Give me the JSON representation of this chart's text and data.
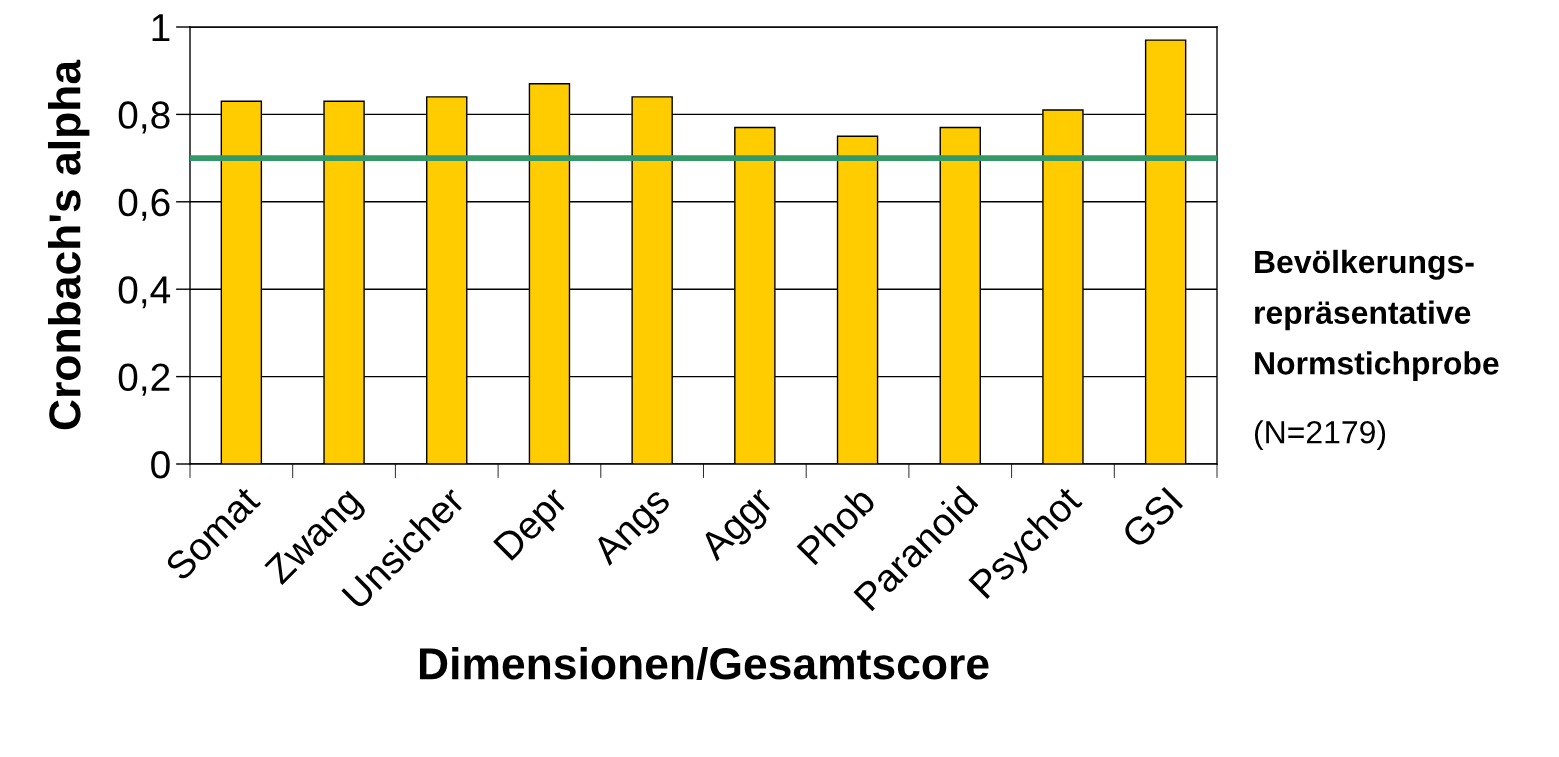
{
  "chart_data": {
    "type": "bar",
    "xlabel": "Dimensionen/Gesamtscore",
    "ylabel": "Cronbach's alpha",
    "categories": [
      "Somat",
      "Zwang",
      "Unsicher",
      "Depr",
      "Angs",
      "Aggr",
      "Phob",
      "Paranoid",
      "Psychot",
      "GSI"
    ],
    "values": [
      0.83,
      0.83,
      0.84,
      0.87,
      0.84,
      0.77,
      0.75,
      0.77,
      0.81,
      0.97
    ],
    "color": "#ffcc00",
    "ylim": [
      0,
      1
    ],
    "yticks": [
      0,
      {
        "value": 0.2,
        "label": "0,2"
      },
      {
        "value": 0.4,
        "label": "0,4"
      },
      {
        "value": 0.6,
        "label": "0,6"
      },
      {
        "value": 0.8,
        "label": "0,8"
      },
      1
    ],
    "grid": "y",
    "ref_lines": [
      {
        "axis": "y",
        "value": 0.7,
        "color": "#339966"
      }
    ],
    "annotations": [
      "Bevölkerungs-\nrepräsentative\nNormstichprobe",
      "(N=2179)"
    ]
  }
}
